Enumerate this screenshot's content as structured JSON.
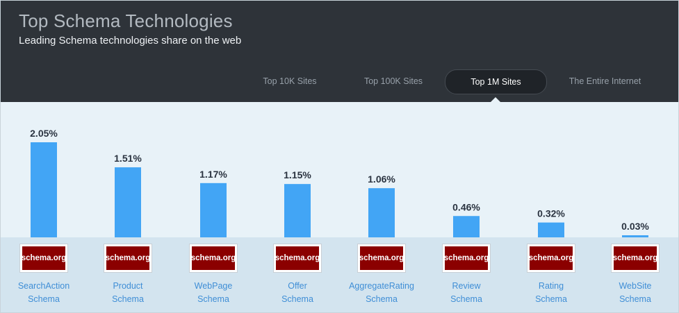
{
  "header": {
    "title": "Top Schema Technologies",
    "subtitle": "Leading Schema technologies share on the web"
  },
  "tabs": [
    {
      "label": "Top 10K Sites",
      "active": false
    },
    {
      "label": "Top 100K Sites",
      "active": false
    },
    {
      "label": "Top 1M Sites",
      "active": true
    },
    {
      "label": "The Entire Internet",
      "active": false
    }
  ],
  "logo_text": "schema.org",
  "colors": {
    "bar": "#42a5f5",
    "header_bg": "#2e3339",
    "plot_bg": "#e8f2f8",
    "label_bg": "#d3e4ef",
    "link": "#3f8ed6",
    "logo_bg": "#8b0000"
  },
  "chart_data": {
    "type": "bar",
    "categories": [
      [
        "SearchAction",
        "Schema"
      ],
      [
        "Product",
        "Schema"
      ],
      [
        "WebPage",
        "Schema"
      ],
      [
        "Offer",
        "Schema"
      ],
      [
        "AggregateRating",
        "Schema"
      ],
      [
        "Review",
        "Schema"
      ],
      [
        "Rating",
        "Schema"
      ],
      [
        "WebSite",
        "Schema"
      ]
    ],
    "values": [
      2.05,
      1.51,
      1.17,
      1.15,
      1.06,
      0.46,
      0.32,
      0.03
    ],
    "labels": [
      "2.05%",
      "1.51%",
      "1.17%",
      "1.15%",
      "1.06%",
      "0.46%",
      "0.32%",
      "0.03%"
    ],
    "unit": "%",
    "ylim": [
      0,
      2.05
    ],
    "grid": false,
    "legend": "none"
  }
}
